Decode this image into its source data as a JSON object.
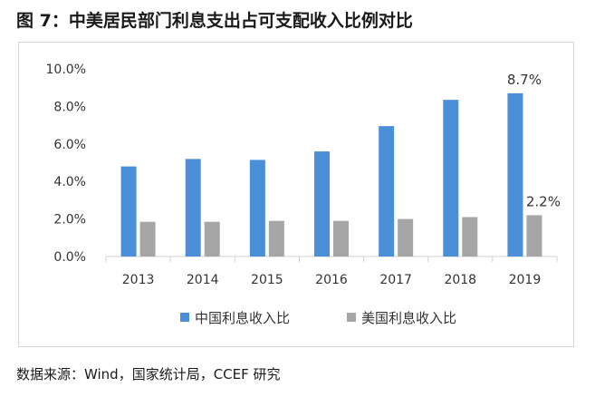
{
  "title": "图 7：中美居民部门利息支出占可支配收入比例对比",
  "source": "数据来源：Wind，国家统计局，CCEF 研究",
  "chart_data": {
    "type": "bar",
    "categories": [
      "2013",
      "2014",
      "2015",
      "2016",
      "2017",
      "2018",
      "2019"
    ],
    "series": [
      {
        "name": "中国利息收入比",
        "color": "#4a8fd8",
        "values": [
          4.8,
          5.2,
          5.15,
          5.6,
          6.95,
          8.35,
          8.7
        ]
      },
      {
        "name": "美国利息收入比",
        "color": "#a6a6a6",
        "values": [
          1.85,
          1.85,
          1.9,
          1.9,
          2.0,
          2.1,
          2.2
        ]
      }
    ],
    "y_ticks": [
      "0.0%",
      "2.0%",
      "4.0%",
      "6.0%",
      "8.0%",
      "10.0%"
    ],
    "ylim": [
      0,
      10
    ],
    "data_labels": [
      {
        "series": 0,
        "index": 6,
        "text": "8.7%"
      },
      {
        "series": 1,
        "index": 6,
        "text": "2.2%"
      }
    ],
    "legend": "bottom",
    "grid": false
  }
}
